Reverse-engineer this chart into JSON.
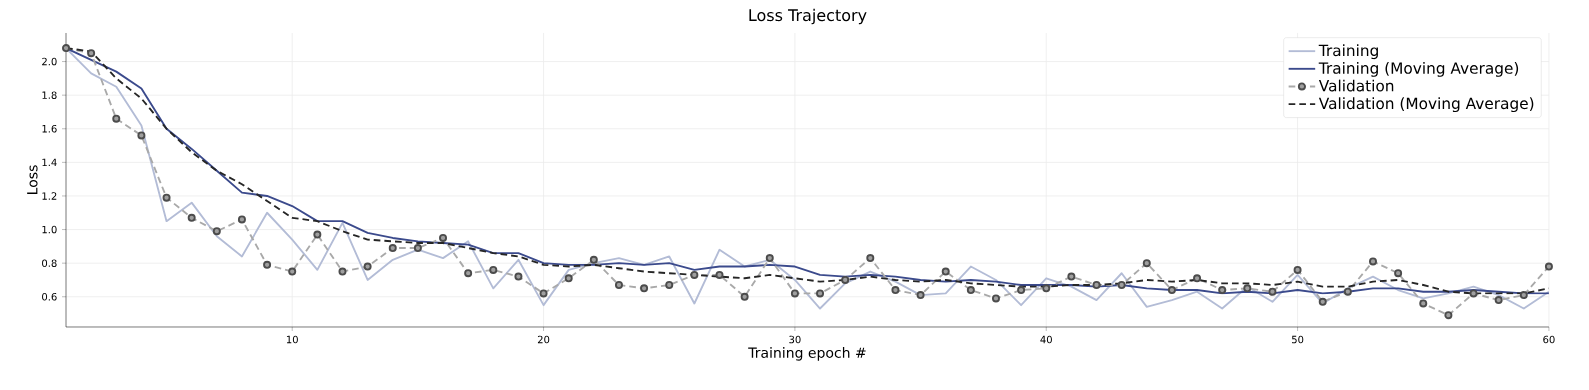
{
  "chart_data": {
    "type": "line",
    "title": "Loss Trajectory",
    "xlabel": "Training epoch #",
    "ylabel": "Loss",
    "x": [
      1,
      2,
      3,
      4,
      5,
      6,
      7,
      8,
      9,
      10,
      11,
      12,
      13,
      14,
      15,
      16,
      17,
      18,
      19,
      20,
      21,
      22,
      23,
      24,
      25,
      26,
      27,
      28,
      29,
      30,
      31,
      32,
      33,
      34,
      35,
      36,
      37,
      38,
      39,
      40,
      41,
      42,
      43,
      44,
      45,
      46,
      47,
      48,
      49,
      50,
      51,
      52,
      53,
      54,
      55,
      56,
      57,
      58,
      59,
      60
    ],
    "series": [
      {
        "name": "Training",
        "color": "#b3bcd6",
        "line_style": "solid",
        "marker": "none",
        "values": [
          2.08,
          1.93,
          1.85,
          1.62,
          1.05,
          1.16,
          0.96,
          0.84,
          1.1,
          0.94,
          0.76,
          1.04,
          0.7,
          0.82,
          0.88,
          0.83,
          0.93,
          0.65,
          0.82,
          0.55,
          0.76,
          0.8,
          0.83,
          0.79,
          0.84,
          0.56,
          0.88,
          0.78,
          0.82,
          0.7,
          0.53,
          0.68,
          0.75,
          0.69,
          0.61,
          0.62,
          0.78,
          0.7,
          0.55,
          0.71,
          0.66,
          0.58,
          0.74,
          0.54,
          0.58,
          0.63,
          0.53,
          0.66,
          0.57,
          0.73,
          0.56,
          0.65,
          0.72,
          0.64,
          0.59,
          0.62,
          0.66,
          0.61,
          0.53,
          0.63
        ]
      },
      {
        "name": "Training (Moving Average)",
        "color": "#3b4a8c",
        "line_style": "solid",
        "marker": "none",
        "values": [
          2.08,
          2.01,
          1.94,
          1.84,
          1.6,
          1.48,
          1.35,
          1.22,
          1.2,
          1.14,
          1.05,
          1.05,
          0.98,
          0.95,
          0.93,
          0.92,
          0.91,
          0.86,
          0.86,
          0.8,
          0.79,
          0.79,
          0.8,
          0.79,
          0.8,
          0.76,
          0.78,
          0.78,
          0.79,
          0.78,
          0.73,
          0.72,
          0.73,
          0.72,
          0.7,
          0.69,
          0.7,
          0.69,
          0.67,
          0.67,
          0.67,
          0.66,
          0.67,
          0.65,
          0.64,
          0.64,
          0.62,
          0.63,
          0.62,
          0.64,
          0.62,
          0.63,
          0.65,
          0.65,
          0.63,
          0.63,
          0.64,
          0.63,
          0.62,
          0.62
        ]
      },
      {
        "name": "Validation",
        "color": "#a9a9a9",
        "line_style": "dashed",
        "marker": "circle",
        "values": [
          2.08,
          2.05,
          1.66,
          1.56,
          1.19,
          1.07,
          0.99,
          1.06,
          0.79,
          0.75,
          0.97,
          0.75,
          0.78,
          0.89,
          0.89,
          0.95,
          0.74,
          0.76,
          0.72,
          0.62,
          0.71,
          0.82,
          0.67,
          0.65,
          0.67,
          0.73,
          0.73,
          0.6,
          0.83,
          0.62,
          0.62,
          0.7,
          0.83,
          0.64,
          0.61,
          0.75,
          0.64,
          0.59,
          0.64,
          0.65,
          0.72,
          0.67,
          0.67,
          0.8,
          0.64,
          0.71,
          0.64,
          0.65,
          0.63,
          0.76,
          0.57,
          0.63,
          0.81,
          0.74,
          0.56,
          0.49,
          0.62,
          0.58,
          0.61,
          0.78
        ]
      },
      {
        "name": "Validation (Moving Average)",
        "color": "#262626",
        "line_style": "dashed",
        "marker": "none",
        "values": [
          2.08,
          2.06,
          1.9,
          1.78,
          1.6,
          1.46,
          1.35,
          1.27,
          1.17,
          1.07,
          1.05,
          0.99,
          0.94,
          0.93,
          0.92,
          0.92,
          0.89,
          0.86,
          0.84,
          0.79,
          0.78,
          0.79,
          0.77,
          0.75,
          0.74,
          0.73,
          0.72,
          0.71,
          0.73,
          0.71,
          0.69,
          0.7,
          0.72,
          0.7,
          0.69,
          0.7,
          0.68,
          0.67,
          0.66,
          0.66,
          0.67,
          0.67,
          0.68,
          0.7,
          0.69,
          0.7,
          0.68,
          0.68,
          0.67,
          0.69,
          0.66,
          0.66,
          0.69,
          0.7,
          0.67,
          0.63,
          0.62,
          0.62,
          0.62,
          0.65
        ]
      }
    ],
    "xlim": [
      1,
      60
    ],
    "xticks": [
      10,
      20,
      30,
      40,
      50,
      60
    ],
    "ylim": [
      0.42,
      2.17
    ],
    "yticks": [
      0.6,
      0.8,
      {
        "value": 1.0,
        "label": "1.0"
      },
      1.2,
      1.4,
      1.6,
      1.8,
      {
        "value": 2.0,
        "label": "2.0"
      }
    ],
    "grid": true,
    "legend": "top right"
  }
}
